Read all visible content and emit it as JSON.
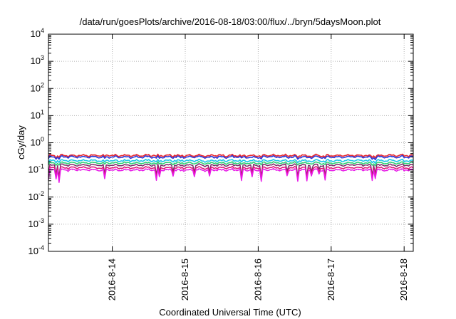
{
  "chart_data": {
    "type": "line",
    "title": "/data/run/goesPlots/archive/2016-08-18/03:00/flux/../bryn/5daysMoon.plot",
    "xlabel": "Coordinated Universal Time (UTC)",
    "ylabel": "cGy/day",
    "yscale": "log",
    "ylim": [
      0.0001,
      10000
    ],
    "yticks": [
      {
        "value": 0.0001,
        "mant": "10",
        "exp": "-4"
      },
      {
        "value": 0.001,
        "mant": "10",
        "exp": "-3"
      },
      {
        "value": 0.01,
        "mant": "10",
        "exp": "-2"
      },
      {
        "value": 0.1,
        "mant": "10",
        "exp": "-1"
      },
      {
        "value": 1,
        "mant": "10",
        "exp": "0"
      },
      {
        "value": 10,
        "mant": "10",
        "exp": "1"
      },
      {
        "value": 100,
        "mant": "10",
        "exp": "2"
      },
      {
        "value": 1000,
        "mant": "10",
        "exp": "3"
      },
      {
        "value": 10000,
        "mant": "10",
        "exp": "4"
      }
    ],
    "xlim": [
      "2016-08-13 03:00",
      "2016-08-18 03:00"
    ],
    "xticks": [
      "2016-8-14",
      "2016-8-15",
      "2016-8-16",
      "2016-8-17",
      "2016-8-18"
    ],
    "grid": true,
    "legend": "none",
    "series": [
      {
        "color": "#e8262c",
        "level": 0.34
      },
      {
        "color": "#2a35d8",
        "level": 0.3
      },
      {
        "color": "#19c6e8",
        "level": 0.22
      },
      {
        "color": "#2fd177",
        "level": 0.18
      },
      {
        "color": "#7a2a6a",
        "level": 0.15
      },
      {
        "color": "#e0107a",
        "level": 0.12
      },
      {
        "color": "#e81ce8",
        "level": 0.1
      }
    ]
  }
}
